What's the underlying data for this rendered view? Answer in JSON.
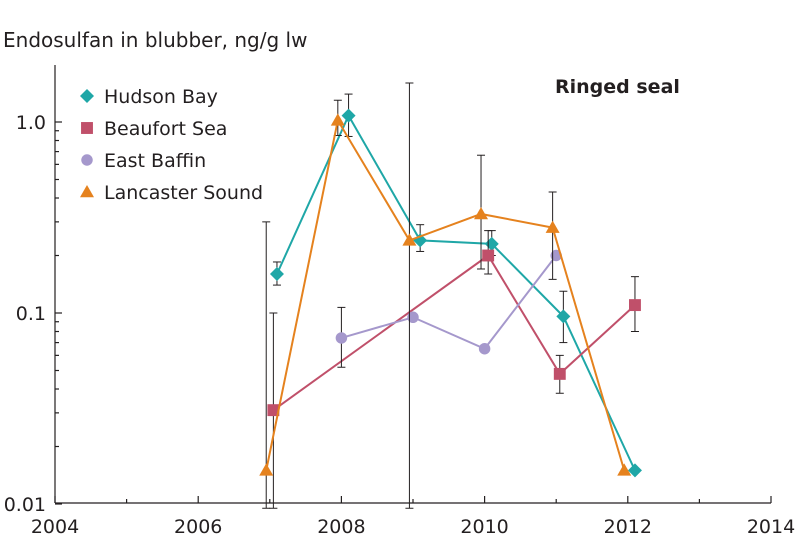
{
  "chart_data": {
    "type": "line",
    "title": "Endosulfan in blubber, ng/g lw",
    "annotation": "Ringed seal",
    "xlabel": "",
    "ylabel": "Endosulfan in blubber, ng/g lw",
    "xlim": [
      2004,
      2014
    ],
    "ylim": [
      0.01,
      2.0
    ],
    "yscale": "log",
    "x_ticks": [
      2004,
      2006,
      2008,
      2010,
      2012,
      2014
    ],
    "x_tick_labels": [
      "2004",
      "2006",
      "2008",
      "2010",
      "2012",
      "2014"
    ],
    "y_ticks": [
      0.01,
      0.1,
      1.0
    ],
    "y_tick_labels": [
      "0.01",
      "0.1",
      "1.0"
    ],
    "grid": false,
    "legend_position": "top-left",
    "series": [
      {
        "name": "Hudson Bay",
        "color": "#1fa7a7",
        "marker": "diamond",
        "points": [
          {
            "x": 2007.1,
            "y": 0.16,
            "err_low": 0.14,
            "err_high": 0.185
          },
          {
            "x": 2008.1,
            "y": 1.08,
            "err_low": 0.84,
            "err_high": 1.4
          },
          {
            "x": 2009.1,
            "y": 0.24,
            "err_low": 0.21,
            "err_high": 0.29
          },
          {
            "x": 2010.1,
            "y": 0.23,
            "err_low": 0.2,
            "err_high": 0.27
          },
          {
            "x": 2011.1,
            "y": 0.096,
            "err_low": 0.07,
            "err_high": 0.13
          },
          {
            "x": 2012.1,
            "y": 0.015
          }
        ]
      },
      {
        "name": "Beaufort Sea",
        "color": "#c0506a",
        "marker": "square",
        "points": [
          {
            "x": 2007.05,
            "y": 0.031,
            "err_low": 0.0095,
            "err_high": 0.1
          },
          {
            "x": 2010.05,
            "y": 0.2,
            "err_low": 0.16,
            "err_high": 0.27
          },
          {
            "x": 2011.05,
            "y": 0.048,
            "err_low": 0.038,
            "err_high": 0.06
          },
          {
            "x": 2012.1,
            "y": 0.11,
            "err_low": 0.08,
            "err_high": 0.155
          }
        ]
      },
      {
        "name": "East Baffin",
        "color": "#a598cc",
        "marker": "circle",
        "points": [
          {
            "x": 2008.0,
            "y": 0.074,
            "err_low": 0.052,
            "err_high": 0.107
          },
          {
            "x": 2009.0,
            "y": 0.095
          },
          {
            "x": 2010.0,
            "y": 0.065
          },
          {
            "x": 2011.0,
            "y": 0.2
          }
        ]
      },
      {
        "name": "Lancaster Sound",
        "color": "#e5821e",
        "marker": "triangle",
        "points": [
          {
            "x": 2006.95,
            "y": 0.015,
            "err_low": 0.0095,
            "err_high": 0.3
          },
          {
            "x": 2007.95,
            "y": 1.02,
            "err_low": 0.85,
            "err_high": 1.3
          },
          {
            "x": 2008.95,
            "y": 0.24,
            "err_low": 0.0095,
            "err_high": 1.6
          },
          {
            "x": 2009.95,
            "y": 0.33,
            "err_low": 0.17,
            "err_high": 0.67
          },
          {
            "x": 2010.95,
            "y": 0.28,
            "err_low": 0.15,
            "err_high": 0.43
          },
          {
            "x": 2011.95,
            "y": 0.015
          }
        ]
      }
    ]
  }
}
